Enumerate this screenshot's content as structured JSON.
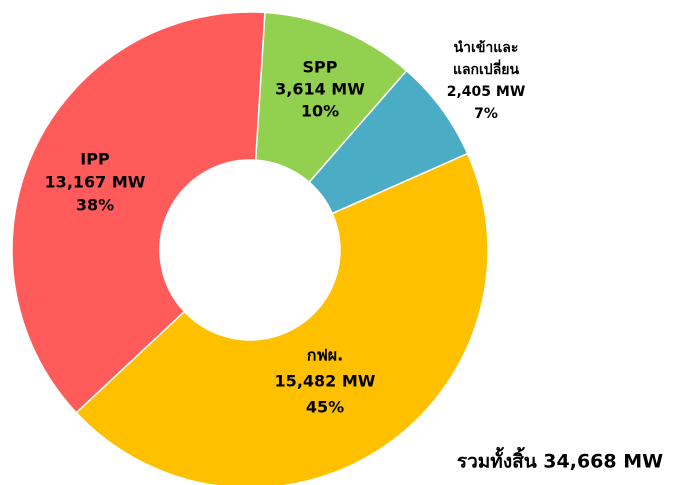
{
  "chart_data": {
    "type": "donut",
    "categories": [
      [
        "SPP"
      ],
      [
        "นำเข้าและ",
        "แลกเปลี่ยน"
      ],
      [
        "กฟผ."
      ],
      [
        "IPP"
      ]
    ],
    "values": [
      3614,
      2405,
      15482,
      13167
    ],
    "value_labels": [
      "3,614 MW",
      "2,405 MW",
      "15,482 MW",
      "13,167 MW"
    ],
    "percentages": [
      10,
      7,
      45,
      38
    ],
    "percentage_labels": [
      "10%",
      "7%",
      "45%",
      "38%"
    ],
    "colors": [
      "#92d050",
      "#4bacc6",
      "#ffc000",
      "#ff5b5b"
    ],
    "annotation": "รวมทั้งสิ้น 34,668 MW"
  }
}
